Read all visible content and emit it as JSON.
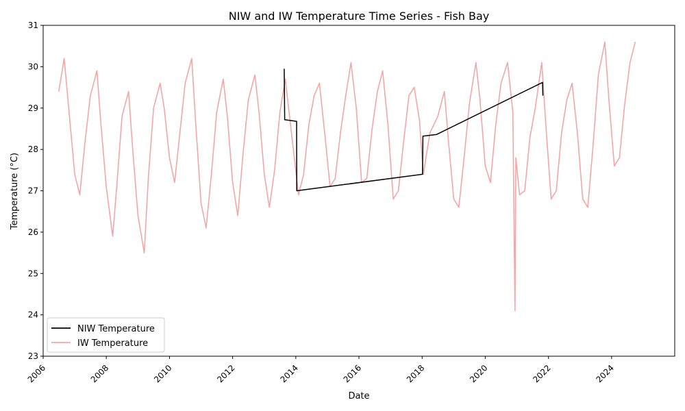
{
  "chart_data": {
    "type": "line",
    "title": "NIW and IW Temperature Time Series - Fish Bay",
    "xlabel": "Date",
    "ylabel": "Temperature (°C)",
    "xlim": [
      "2006-01-01",
      "2025-12-31"
    ],
    "ylim": [
      23,
      31
    ],
    "x_ticks": [
      "2006",
      "2008",
      "2010",
      "2012",
      "2014",
      "2016",
      "2018",
      "2020",
      "2022",
      "2024"
    ],
    "y_ticks": [
      "23",
      "24",
      "25",
      "26",
      "27",
      "28",
      "29",
      "30",
      "31"
    ],
    "grid": false,
    "legend_position": "lower-left",
    "series": [
      {
        "name": "IW Temperature",
        "color": "#f08080",
        "alpha": 0.7,
        "points": [
          [
            "2006-07-01",
            29.4
          ],
          [
            "2006-09-01",
            30.2
          ],
          [
            "2006-11-01",
            28.8
          ],
          [
            "2007-01-01",
            27.4
          ],
          [
            "2007-03-01",
            26.9
          ],
          [
            "2007-05-01",
            28.2
          ],
          [
            "2007-07-01",
            29.3
          ],
          [
            "2007-09-15",
            29.9
          ],
          [
            "2007-11-01",
            28.6
          ],
          [
            "2008-01-01",
            27.1
          ],
          [
            "2008-03-15",
            25.9
          ],
          [
            "2008-05-01",
            27.1
          ],
          [
            "2008-07-01",
            28.8
          ],
          [
            "2008-09-15",
            29.4
          ],
          [
            "2008-11-01",
            28.0
          ],
          [
            "2009-01-01",
            26.4
          ],
          [
            "2009-03-15",
            25.5
          ],
          [
            "2009-05-01",
            27.3
          ],
          [
            "2009-07-01",
            29.0
          ],
          [
            "2009-09-15",
            29.6
          ],
          [
            "2009-11-01",
            29.0
          ],
          [
            "2010-01-01",
            27.8
          ],
          [
            "2010-03-01",
            27.2
          ],
          [
            "2010-05-01",
            28.4
          ],
          [
            "2010-07-01",
            29.6
          ],
          [
            "2010-09-15",
            30.2
          ],
          [
            "2010-11-01",
            28.6
          ],
          [
            "2011-01-01",
            26.7
          ],
          [
            "2011-03-01",
            26.1
          ],
          [
            "2011-05-01",
            27.4
          ],
          [
            "2011-07-01",
            28.9
          ],
          [
            "2011-09-15",
            29.7
          ],
          [
            "2011-11-01",
            28.8
          ],
          [
            "2012-01-01",
            27.2
          ],
          [
            "2012-03-01",
            26.4
          ],
          [
            "2012-05-01",
            27.9
          ],
          [
            "2012-07-01",
            29.2
          ],
          [
            "2012-09-15",
            29.8
          ],
          [
            "2012-11-01",
            28.9
          ],
          [
            "2013-01-01",
            27.4
          ],
          [
            "2013-03-01",
            26.6
          ],
          [
            "2013-05-01",
            27.5
          ],
          [
            "2013-07-01",
            28.9
          ],
          [
            "2013-09-01",
            29.7
          ],
          [
            "2014-02-01",
            26.9
          ],
          [
            "2014-04-01",
            27.4
          ],
          [
            "2014-06-01",
            28.6
          ],
          [
            "2014-08-01",
            29.3
          ],
          [
            "2014-10-01",
            29.6
          ],
          [
            "2014-12-01",
            28.4
          ],
          [
            "2015-02-01",
            27.1
          ],
          [
            "2015-04-01",
            27.3
          ],
          [
            "2015-06-01",
            28.4
          ],
          [
            "2015-08-01",
            29.3
          ],
          [
            "2015-10-01",
            30.1
          ],
          [
            "2015-12-01",
            29.0
          ],
          [
            "2016-02-01",
            27.2
          ],
          [
            "2016-04-01",
            27.3
          ],
          [
            "2016-06-01",
            28.5
          ],
          [
            "2016-08-01",
            29.4
          ],
          [
            "2016-10-01",
            29.9
          ],
          [
            "2016-12-01",
            28.6
          ],
          [
            "2017-02-01",
            26.8
          ],
          [
            "2017-04-01",
            27.0
          ],
          [
            "2017-06-01",
            28.2
          ],
          [
            "2017-08-01",
            29.3
          ],
          [
            "2017-10-01",
            29.5
          ],
          [
            "2017-12-01",
            28.7
          ],
          [
            "2018-01-15",
            27.4
          ],
          [
            "2018-04-01",
            28.4
          ],
          [
            "2018-07-01",
            28.8
          ],
          [
            "2018-09-15",
            29.4
          ],
          [
            "2018-11-01",
            28.2
          ],
          [
            "2019-01-01",
            26.8
          ],
          [
            "2019-03-01",
            26.6
          ],
          [
            "2019-05-01",
            27.8
          ],
          [
            "2019-07-01",
            29.1
          ],
          [
            "2019-09-15",
            30.1
          ],
          [
            "2019-11-01",
            29.2
          ],
          [
            "2020-01-01",
            27.6
          ],
          [
            "2020-03-01",
            27.2
          ],
          [
            "2020-05-01",
            28.6
          ],
          [
            "2020-07-01",
            29.6
          ],
          [
            "2020-09-15",
            30.1
          ],
          [
            "2020-11-15",
            28.9
          ],
          [
            "2020-12-10",
            24.1
          ],
          [
            "2020-12-20",
            27.8
          ],
          [
            "2021-02-01",
            26.9
          ],
          [
            "2021-04-01",
            27.0
          ],
          [
            "2021-06-01",
            28.3
          ],
          [
            "2021-08-01",
            29.0
          ],
          [
            "2021-10-15",
            30.1
          ],
          [
            "2021-12-01",
            28.6
          ],
          [
            "2022-02-01",
            26.8
          ],
          [
            "2022-04-01",
            27.0
          ],
          [
            "2022-06-01",
            28.4
          ],
          [
            "2022-08-01",
            29.2
          ],
          [
            "2022-10-01",
            29.6
          ],
          [
            "2022-12-01",
            28.4
          ],
          [
            "2023-02-01",
            26.8
          ],
          [
            "2023-04-01",
            26.6
          ],
          [
            "2023-06-01",
            28.1
          ],
          [
            "2023-08-01",
            29.8
          ],
          [
            "2023-10-15",
            30.6
          ],
          [
            "2023-12-01",
            29.2
          ],
          [
            "2024-02-01",
            27.6
          ],
          [
            "2024-04-01",
            27.8
          ],
          [
            "2024-06-01",
            29.1
          ],
          [
            "2024-08-01",
            30.1
          ],
          [
            "2024-10-01",
            30.6
          ]
        ]
      },
      {
        "name": "NIW Temperature",
        "color": "#000000",
        "alpha": 1,
        "points": [
          [
            "2013-08-20",
            29.95
          ],
          [
            "2013-08-25",
            28.72
          ],
          [
            "2014-01-10",
            28.68
          ],
          [
            "2014-01-12",
            27.0
          ],
          [
            "2018-01-05",
            27.4
          ],
          [
            "2018-01-10",
            28.32
          ],
          [
            "2018-06-15",
            28.36
          ],
          [
            "2021-10-25",
            29.62
          ],
          [
            "2021-10-28",
            29.3
          ]
        ]
      }
    ]
  }
}
